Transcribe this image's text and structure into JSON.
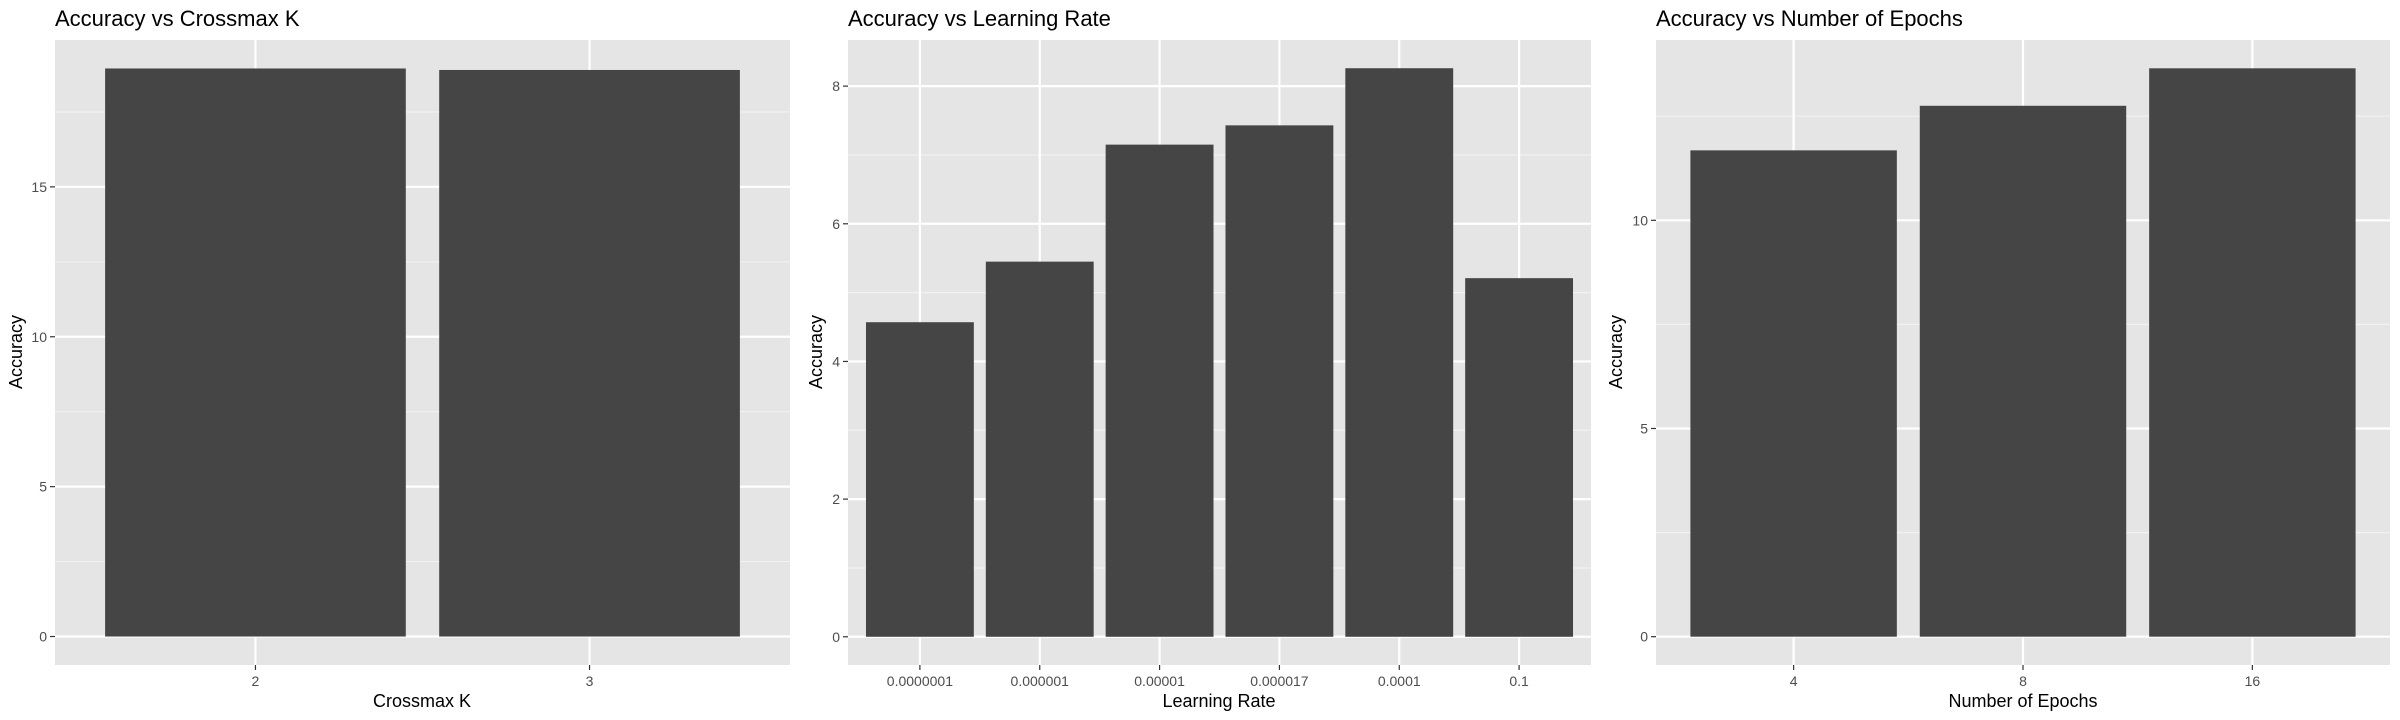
{
  "chart_data": [
    {
      "type": "bar",
      "title": "Accuracy vs Crossmax K",
      "xlabel": "Crossmax K",
      "ylabel": "Accuracy",
      "categories": [
        "2",
        "3"
      ],
      "values": [
        18.95,
        18.9
      ],
      "ylim": [
        -0.95,
        19.9
      ],
      "yticks": [
        0,
        5,
        10,
        15
      ],
      "ytick_labels": [
        "0",
        "5",
        "10",
        "15"
      ],
      "grid": true,
      "colors": {
        "bar": "#454545",
        "panel": "#e5e5e5",
        "grid_major": "#ffffff",
        "grid_minor": "#f2f2f2"
      }
    },
    {
      "type": "bar",
      "title": "Accuracy vs Learning Rate",
      "xlabel": "Learning Rate",
      "ylabel": "Accuracy",
      "categories": [
        "0.0000001",
        "0.000001",
        "0.00001",
        "0.000017",
        "0.0001",
        "0.1"
      ],
      "values": [
        4.57,
        5.45,
        7.15,
        7.43,
        8.26,
        5.21
      ],
      "ylim": [
        -0.41,
        8.67
      ],
      "yticks": [
        0,
        2,
        4,
        6,
        8
      ],
      "ytick_labels": [
        "0",
        "2",
        "4",
        "6",
        "8"
      ],
      "grid": true,
      "colors": {
        "bar": "#454545",
        "panel": "#e5e5e5",
        "grid_major": "#ffffff",
        "grid_minor": "#f2f2f2"
      }
    },
    {
      "type": "bar",
      "title": "Accuracy vs Number of Epochs",
      "xlabel": "Number of Epochs",
      "ylabel": "Accuracy",
      "categories": [
        "4",
        "8",
        "16"
      ],
      "values": [
        11.68,
        12.75,
        13.65
      ],
      "ylim": [
        -0.68,
        14.33
      ],
      "yticks": [
        0,
        5,
        10
      ],
      "ytick_labels": [
        "0",
        "5",
        "10"
      ],
      "grid": true,
      "colors": {
        "bar": "#454545",
        "panel": "#e5e5e5",
        "grid_major": "#ffffff",
        "grid_minor": "#f2f2f2"
      }
    }
  ]
}
